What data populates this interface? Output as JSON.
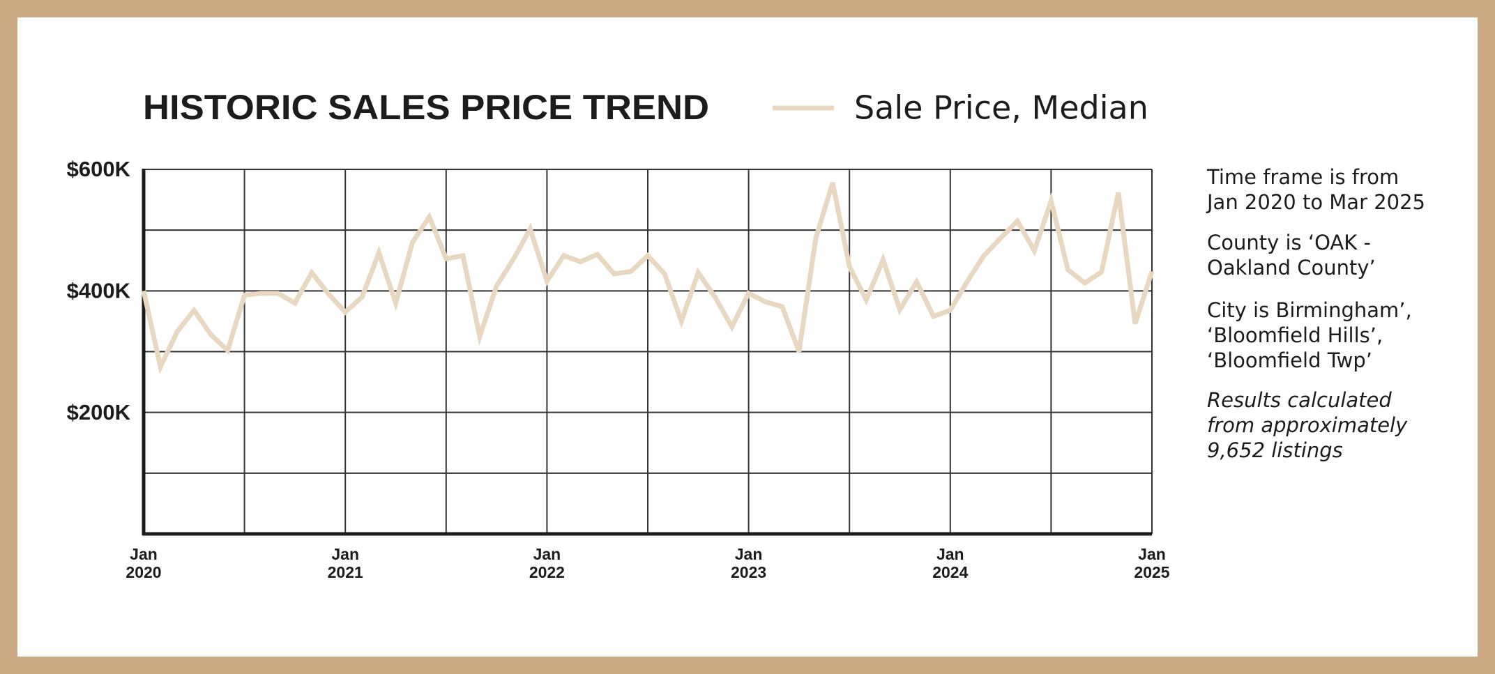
{
  "chart_data": {
    "type": "line",
    "title": "HISTORIC SALES PRICE TREND",
    "x": [
      "2020-01",
      "2020-02",
      "2020-03",
      "2020-04",
      "2020-05",
      "2020-06",
      "2020-07",
      "2020-08",
      "2020-09",
      "2020-10",
      "2020-11",
      "2020-12",
      "2021-01",
      "2021-02",
      "2021-03",
      "2021-04",
      "2021-05",
      "2021-06",
      "2021-07",
      "2021-08",
      "2021-09",
      "2021-10",
      "2021-11",
      "2021-12",
      "2022-01",
      "2022-02",
      "2022-03",
      "2022-04",
      "2022-05",
      "2022-06",
      "2022-07",
      "2022-08",
      "2022-09",
      "2022-10",
      "2022-11",
      "2022-12",
      "2023-01",
      "2023-02",
      "2023-03",
      "2023-04",
      "2023-05",
      "2023-06",
      "2023-07",
      "2023-08",
      "2023-09",
      "2023-10",
      "2023-11",
      "2023-12",
      "2024-01",
      "2024-02",
      "2024-03",
      "2024-04",
      "2024-05",
      "2024-06",
      "2024-07",
      "2024-08",
      "2024-09",
      "2024-10",
      "2024-11",
      "2024-12",
      "2025-01"
    ],
    "series": [
      {
        "name": "Sale Price, Median",
        "color": "#e8d8c2",
        "values": [
          400000,
          275000,
          333000,
          368000,
          328000,
          302000,
          393000,
          396000,
          396000,
          380000,
          430000,
          395000,
          365000,
          390000,
          463000,
          380000,
          480000,
          522000,
          453000,
          458000,
          325000,
          408000,
          452000,
          502000,
          416000,
          458000,
          448000,
          460000,
          428000,
          432000,
          458000,
          428000,
          350000,
          430000,
          390000,
          341000,
          396000,
          382000,
          374000,
          300000,
          487000,
          578000,
          440000,
          385000,
          451000,
          369000,
          415000,
          358000,
          368000,
          415000,
          458000,
          487000,
          515000,
          466000,
          548000,
          435000,
          413000,
          431000,
          562000,
          346000,
          432000
        ]
      }
    ],
    "xlim": [
      "2020-01",
      "2025-01"
    ],
    "xticks": [
      {
        "value": "2020-01",
        "label": [
          "Jan",
          "2020"
        ]
      },
      {
        "value": "2021-01",
        "label": [
          "Jan",
          "2021"
        ]
      },
      {
        "value": "2022-01",
        "label": [
          "Jan",
          "2022"
        ]
      },
      {
        "value": "2023-01",
        "label": [
          "Jan",
          "2023"
        ]
      },
      {
        "value": "2024-01",
        "label": [
          "Jan",
          "2024"
        ]
      },
      {
        "value": "2025-01",
        "label": [
          "Jan",
          "2025"
        ]
      }
    ],
    "xminor": [
      "2020-07",
      "2021-07",
      "2022-07",
      "2023-07",
      "2024-07"
    ],
    "ylim": [
      0,
      600000
    ],
    "yticks": [
      {
        "value": 200000,
        "label": "$200K"
      },
      {
        "value": 400000,
        "label": "$400K"
      },
      {
        "value": 600000,
        "label": "$600K"
      }
    ],
    "yminor": [
      100000,
      300000,
      500000
    ],
    "grid": true,
    "legend": "top"
  },
  "notes": [
    {
      "lines": [
        "Time frame is from",
        "Jan 2020 to Mar 2025"
      ],
      "italic": false
    },
    {
      "lines": [
        "County is ‘OAK -",
        "Oakland County’"
      ],
      "italic": false
    },
    {
      "lines": [
        "City is Birmingham’,",
        "‘Bloomfield Hills’,",
        "‘Bloomfield Twp’"
      ],
      "italic": false
    },
    {
      "lines": [
        "Results calculated",
        "from approximately",
        "9,652 listings"
      ],
      "italic": true
    }
  ]
}
